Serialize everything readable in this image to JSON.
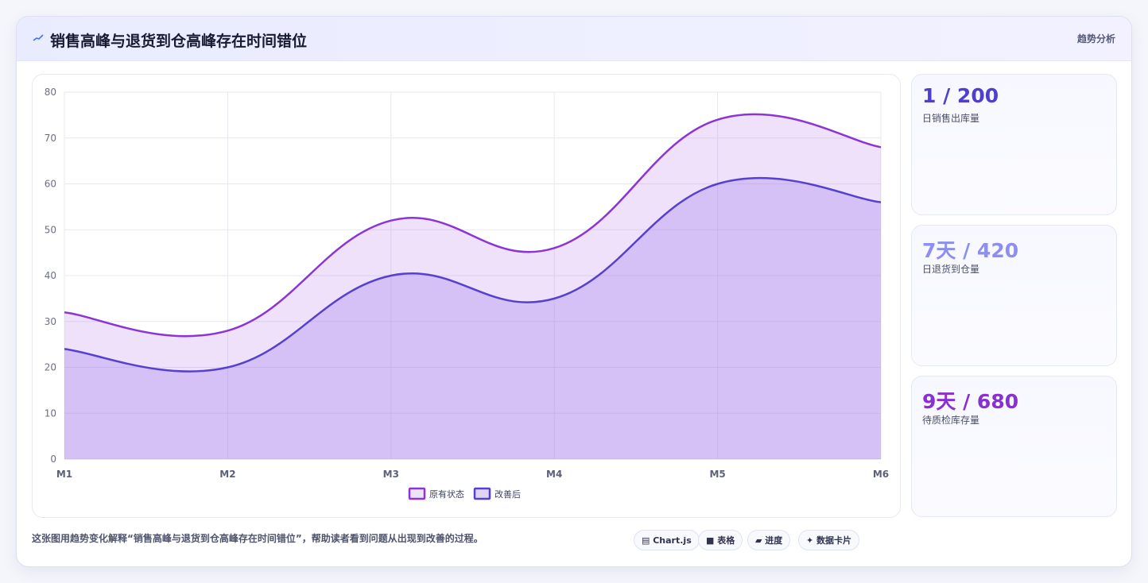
{
  "header": {
    "title": "销售高峰与退货到仓高峰存在时间错位",
    "right_label": "趋势分析",
    "icon": "trend-line-icon"
  },
  "stats": [
    {
      "value": "1 / 200",
      "label": "日销售出库量",
      "color": "#4f3fcf"
    },
    {
      "value": "7天 / 420",
      "label": "日退货到仓量",
      "color": "#8c8ff0"
    },
    {
      "value": "9天 / 680",
      "label": "待质检库存量",
      "color": "#8a2fd1"
    }
  ],
  "description": "这张图用趋势变化解释“销售高峰与退货到仓高峰存在时间错位”，帮助读者看到问题从出现到改善的过程。",
  "chips": [
    {
      "label": "Chart.js",
      "icon": "chart-icon"
    },
    {
      "label": "表格",
      "icon": "table-icon"
    },
    {
      "label": "进度",
      "icon": "progress-icon"
    },
    {
      "label": "数据卡片",
      "icon": "sparkle-icon"
    }
  ],
  "chart_data": {
    "type": "area",
    "categories": [
      "M1",
      "M2",
      "M3",
      "M4",
      "M5",
      "M6"
    ],
    "series": [
      {
        "name": "原有状态",
        "values": [
          32,
          28,
          52,
          46,
          74,
          68
        ],
        "color": "#8b35d6"
      },
      {
        "name": "改善后",
        "values": [
          24,
          20,
          40,
          35,
          60,
          56
        ],
        "color": "#5640d0"
      }
    ],
    "ylim": [
      0,
      80
    ],
    "yticks": [
      0,
      10,
      20,
      30,
      40,
      50,
      60,
      70,
      80
    ],
    "grid": true,
    "legend": "bottom"
  }
}
